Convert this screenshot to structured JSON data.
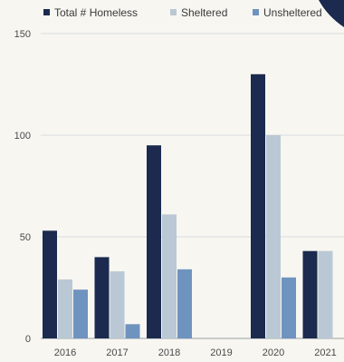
{
  "chart_data": {
    "type": "bar",
    "categories": [
      "2016",
      "2017",
      "2018",
      "2019",
      "2020",
      "2021"
    ],
    "series": [
      {
        "name": "Total # Homeless",
        "color": "#1b2a4e",
        "values": [
          53,
          40,
          95,
          0,
          130,
          43
        ]
      },
      {
        "name": "Sheltered",
        "color": "#b9c8d4",
        "values": [
          29,
          33,
          61,
          0,
          100,
          43
        ]
      },
      {
        "name": "Unsheltered",
        "color": "#6f93bf",
        "values": [
          24,
          7,
          34,
          0,
          30,
          null
        ]
      }
    ],
    "y_ticks": [
      "0",
      "50",
      "100",
      "150"
    ],
    "ylim": [
      0,
      150
    ],
    "grid": true,
    "legend_position": "top"
  }
}
